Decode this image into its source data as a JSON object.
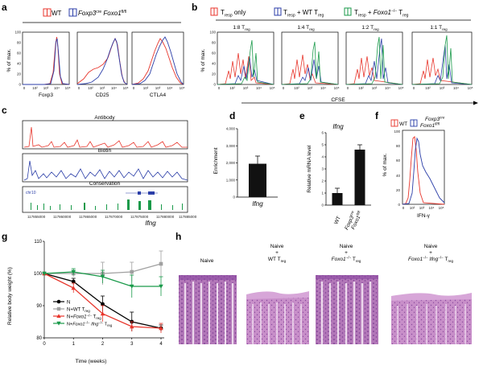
{
  "panels": {
    "a": {
      "label": "a",
      "legend": [
        "WT",
        "Foxp3",
        "cre",
        " Foxo1",
        "fl/fl"
      ],
      "ylabel": "% of max.",
      "yticks": [
        "0",
        "20",
        "40",
        "60",
        "80",
        "100"
      ],
      "xticks": [
        "0",
        "10²",
        "10³",
        "10⁴",
        "10⁵"
      ],
      "xlabels": [
        "Foxp3",
        "CD25",
        "CTLA4"
      ]
    },
    "b": {
      "label": "b",
      "legend": [
        "T",
        "resp",
        " only",
        "T",
        "resp",
        " + WT T",
        "reg",
        "T",
        "resp",
        " + ",
        "Foxo1",
        "−/−",
        " T",
        "reg"
      ],
      "ratios": [
        {
          "r": "1:8 T",
          "s": "reg"
        },
        {
          "r": "1:4 T",
          "s": "reg"
        },
        {
          "r": "1:2 T",
          "s": "reg"
        },
        {
          "r": "1:1 T",
          "s": "reg"
        }
      ],
      "ylabel": "% of max.",
      "yticks": [
        "0",
        "20",
        "40",
        "60",
        "80",
        "100"
      ],
      "xticks": [
        "0",
        "10²",
        "10³",
        "10⁴",
        "10⁵"
      ],
      "xlabel": "CFSE"
    },
    "c": {
      "label": "c",
      "tracks": [
        "Antibody",
        "Biotin",
        "Conservation"
      ],
      "chr": "chr10",
      "coords": [
        "117855000",
        "117860000",
        "117865000",
        "117870000",
        "117875000",
        "117880000",
        "117885000"
      ],
      "gene": "Ifng"
    },
    "d": {
      "label": "d",
      "ylabel": "Enrichment",
      "yticks": [
        "0",
        "1,000",
        "2,000",
        "3,000",
        "4,000"
      ],
      "xlabel": "Ifng"
    },
    "e": {
      "label": "e",
      "title": "Ifng",
      "ylabel": "Relative mRNA level",
      "yticks": [
        "0",
        "1",
        "2",
        "3",
        "4",
        "5",
        "6"
      ],
      "xlabels": [
        "WT",
        "Foxp3",
        "cre",
        "Foxo1",
        "fl/fl"
      ]
    },
    "f": {
      "label": "f",
      "legend": [
        "WT",
        "Foxp3",
        "cre",
        "Foxo1",
        "fl/fl"
      ],
      "ylabel": "% of max.",
      "yticks": [
        "0",
        "20",
        "40",
        "60",
        "80",
        "100"
      ],
      "xticks": [
        "0",
        "10²",
        "10³",
        "10⁴",
        "10⁵"
      ],
      "xlabel": "IFN-γ"
    },
    "g": {
      "label": "g",
      "ylabel": "Relative body weight (%)",
      "xlabel": "Time (weeks)",
      "yticks": [
        "80",
        "90",
        "100",
        "110"
      ],
      "xticks": [
        "0",
        "1",
        "2",
        "3",
        "4"
      ],
      "legend": [
        {
          "pre": "N",
          "gene": "",
          "post": "",
          "sup": "",
          "sub": ""
        },
        {
          "pre": "N+WT T",
          "gene": "",
          "post": "",
          "sup": "",
          "sub": "reg"
        },
        {
          "pre": "N+",
          "gene": "Foxo1",
          "post": " T",
          "sup": "−/−",
          "sub": "reg"
        },
        {
          "pre": "N+",
          "gene": "Foxo1",
          "post": " T",
          "sup": "−/−",
          "sub": "reg",
          "extra": "Ifng"
        }
      ]
    },
    "h": {
      "label": "h",
      "columns": [
        {
          "l1": "Naive",
          "l2": "",
          "l3": ""
        },
        {
          "l1": "Naive",
          "l2": "+",
          "l3": "WT T",
          "sub": "reg"
        },
        {
          "l1": "Naive",
          "l2": "+",
          "gene": "Foxo1",
          "sup": "−/−",
          "l3": " T",
          "sub": "reg"
        },
        {
          "l1": "Naive",
          "l2": "+",
          "gene": "Foxo1",
          "sup": "−/−",
          "gene2": "Ifng",
          "sup2": "−/−",
          "l3": " T",
          "sub": "reg"
        }
      ]
    }
  },
  "colors": {
    "red": "#e8362c",
    "blue": "#2b3ea8",
    "green": "#1a9a4a",
    "gray": "#a0a0a0",
    "teal": "#137a6a",
    "tissue": "#a866b0"
  },
  "chart_data": [
    {
      "panel": "d",
      "type": "bar",
      "categories": [
        "Ifng"
      ],
      "values": [
        1950
      ],
      "errors": [
        450
      ],
      "ylabel": "Enrichment",
      "ylim": [
        0,
        4000
      ]
    },
    {
      "panel": "e",
      "type": "bar",
      "title": "Ifng",
      "categories": [
        "WT",
        "Foxp3cre Foxo1fl/fl"
      ],
      "values": [
        1.0,
        4.6
      ],
      "errors": [
        0.4,
        0.4
      ],
      "ylabel": "Relative mRNA level",
      "ylim": [
        0,
        6
      ]
    },
    {
      "panel": "g",
      "type": "line",
      "x": [
        0,
        1,
        2,
        3,
        4
      ],
      "xlabel": "Time (weeks)",
      "ylabel": "Relative body weight (%)",
      "ylim": [
        80,
        110
      ],
      "series": [
        {
          "name": "N",
          "values": [
            100,
            97.5,
            90.5,
            85,
            83
          ],
          "errors": [
            0,
            1,
            2.5,
            3,
            1
          ]
        },
        {
          "name": "N+WT Treg",
          "values": [
            100,
            100,
            100,
            100.5,
            103
          ],
          "errors": [
            0,
            1,
            3.5,
            3,
            4
          ]
        },
        {
          "name": "N+Foxo1-/- Treg",
          "values": [
            100,
            95.5,
            87.5,
            83.5,
            83
          ],
          "errors": [
            0,
            1.5,
            2.5,
            1.5,
            1.5
          ]
        },
        {
          "name": "N+Foxo1-/- Ifng-/- Treg",
          "values": [
            100,
            100.5,
            99,
            96,
            96
          ],
          "errors": [
            0,
            1,
            2,
            3.5,
            3
          ]
        }
      ]
    }
  ]
}
